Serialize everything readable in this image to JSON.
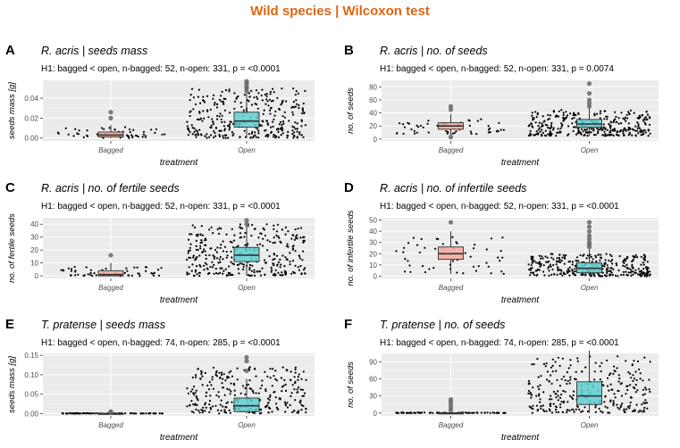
{
  "main_title": "Wild species | Wilcoxon test",
  "colors": {
    "title": "#e06512",
    "bagged_box": "#f4a8a0",
    "open_box": "#5fcfd0",
    "panel_bg": "#ebebeb",
    "grid": "#ffffff",
    "point": "#000000",
    "outlier": "#666666"
  },
  "chart_data": [
    {
      "type": "box",
      "tag": "A",
      "title": "R. acris | seeds mass",
      "subtitle": "H1: bagged < open, n-bagged: 52, n-open: 331, p = <0.0001",
      "xlabel": "treatment",
      "ylabel": "seeds mass [g]",
      "categories": [
        "Bagged",
        "Open"
      ],
      "ylim": [
        -0.003,
        0.058
      ],
      "yticks": [
        0.0,
        0.02,
        0.04
      ],
      "ytick_labels": [
        "0.00",
        "0.02",
        "0.04"
      ],
      "points_shown": "jitter",
      "series": [
        {
          "category": "Bagged",
          "n": 52,
          "min": 0.0,
          "q1": 0.001,
          "median": 0.003,
          "q3": 0.006,
          "max": 0.013,
          "outliers": [
            0.02,
            0.026
          ],
          "spread": [
            0.0,
            0.011
          ]
        },
        {
          "category": "Open",
          "n": 331,
          "min": 0.0,
          "q1": 0.011,
          "median": 0.017,
          "q3": 0.026,
          "max": 0.045,
          "outliers": [
            0.047,
            0.05,
            0.052,
            0.055,
            0.057
          ],
          "spread": [
            0.0,
            0.05
          ]
        }
      ]
    },
    {
      "type": "box",
      "tag": "B",
      "title": "R. acris | no. of seeds",
      "subtitle": "H1: bagged < open, n-bagged: 52, n-open: 331, p = 0.0074",
      "xlabel": "treatment",
      "ylabel": "no. of seeds",
      "categories": [
        "Bagged",
        "Open"
      ],
      "ylim": [
        -3,
        90
      ],
      "yticks": [
        0,
        20,
        40,
        60,
        80
      ],
      "ytick_labels": [
        "0",
        "20",
        "40",
        "60",
        "80"
      ],
      "points_shown": "jitter",
      "series": [
        {
          "category": "Bagged",
          "n": 52,
          "min": 5,
          "q1": 15,
          "median": 20,
          "q3": 25,
          "max": 38,
          "outliers": [
            3,
            45,
            50
          ],
          "spread": [
            8,
            32
          ]
        },
        {
          "category": "Open",
          "n": 331,
          "min": 5,
          "q1": 18,
          "median": 23,
          "q3": 30,
          "max": 47,
          "outliers": [
            50,
            55,
            60,
            70,
            85
          ],
          "spread": [
            5,
            45
          ]
        }
      ]
    },
    {
      "type": "box",
      "tag": "C",
      "title": "R. acris | no. of fertile seeds",
      "subtitle": "H1: bagged < open, n-bagged: 52, n-open: 331, p = <0.0001",
      "xlabel": "treatment",
      "ylabel": "no. of fertile seeds",
      "categories": [
        "Bagged",
        "Open"
      ],
      "ylim": [
        -2,
        45
      ],
      "yticks": [
        0,
        10,
        20,
        30,
        40
      ],
      "ytick_labels": [
        "0",
        "10",
        "20",
        "30",
        "40"
      ],
      "points_shown": "jitter",
      "series": [
        {
          "category": "Bagged",
          "n": 52,
          "min": 0,
          "q1": 0,
          "median": 1,
          "q3": 4,
          "max": 10,
          "outliers": [
            16
          ],
          "spread": [
            0,
            7
          ]
        },
        {
          "category": "Open",
          "n": 331,
          "min": 0,
          "q1": 11,
          "median": 16,
          "q3": 22,
          "max": 38,
          "outliers": [
            40,
            43
          ],
          "spread": [
            0,
            40
          ]
        }
      ]
    },
    {
      "type": "box",
      "tag": "D",
      "title": "R. acris | no. of infertile seeds",
      "subtitle": "H1: bagged < open, n-bagged: 52, n-open: 331, p = <0.0001",
      "xlabel": "treatment",
      "ylabel": "no. of infertile seeds",
      "categories": [
        "Bagged",
        "Open"
      ],
      "ylim": [
        -2,
        52
      ],
      "yticks": [
        0,
        10,
        20,
        30,
        40,
        50
      ],
      "ytick_labels": [
        "0",
        "10",
        "20",
        "30",
        "40",
        "50"
      ],
      "points_shown": "jitter",
      "series": [
        {
          "category": "Bagged",
          "n": 52,
          "min": 2,
          "q1": 15,
          "median": 20,
          "q3": 26,
          "max": 40,
          "outliers": [
            48
          ],
          "spread": [
            2,
            35
          ]
        },
        {
          "category": "Open",
          "n": 331,
          "min": 0,
          "q1": 3,
          "median": 7,
          "q3": 12,
          "max": 24,
          "outliers": [
            26,
            28,
            30,
            33,
            36,
            40,
            44,
            48
          ],
          "spread": [
            0,
            20
          ]
        }
      ]
    },
    {
      "type": "box",
      "tag": "E",
      "title": "T. pratense | seeds mass",
      "subtitle": "H1: bagged < open, n-bagged: 74, n-open: 285, p = <0.0001",
      "xlabel": "treatment",
      "ylabel": "seeds mass [g]",
      "categories": [
        "Bagged",
        "Open"
      ],
      "ylim": [
        -0.006,
        0.155
      ],
      "yticks": [
        0.0,
        0.05,
        0.1,
        0.15
      ],
      "ytick_labels": [
        "0.00",
        "0.05",
        "0.10",
        "0.15"
      ],
      "points_shown": "jitter",
      "series": [
        {
          "category": "Bagged",
          "n": 74,
          "min": 0.0,
          "q1": 0.0,
          "median": 0.0,
          "q3": 0.0,
          "max": 0.0,
          "outliers": [
            0.003,
            0.005
          ],
          "spread": [
            0.0,
            0.001
          ]
        },
        {
          "category": "Open",
          "n": 285,
          "min": 0.0,
          "q1": 0.005,
          "median": 0.02,
          "q3": 0.04,
          "max": 0.09,
          "outliers": [
            0.11,
            0.135,
            0.145
          ],
          "spread": [
            0.0,
            0.12
          ]
        }
      ]
    },
    {
      "type": "box",
      "tag": "F",
      "title": "T. pratense | no. of seeds",
      "subtitle": "H1: bagged < open, n-bagged: 74, n-open: 285, p = <0.0001",
      "xlabel": "treatment",
      "ylabel": "no. of seeds",
      "categories": [
        "Bagged",
        "Open"
      ],
      "ylim": [
        -5,
        105
      ],
      "yticks": [
        0,
        30,
        60,
        90
      ],
      "ytick_labels": [
        "0",
        "30",
        "60",
        "90"
      ],
      "points_shown": "jitter",
      "series": [
        {
          "category": "Bagged",
          "n": 74,
          "min": 0,
          "q1": 0,
          "median": 0,
          "q3": 0,
          "max": 0,
          "outliers": [
            5,
            10,
            15,
            20,
            24
          ],
          "spread": [
            0,
            1
          ]
        },
        {
          "category": "Open",
          "n": 285,
          "min": 0,
          "q1": 15,
          "median": 30,
          "q3": 55,
          "max": 110,
          "outliers": [],
          "spread": [
            0,
            100
          ]
        }
      ]
    }
  ]
}
